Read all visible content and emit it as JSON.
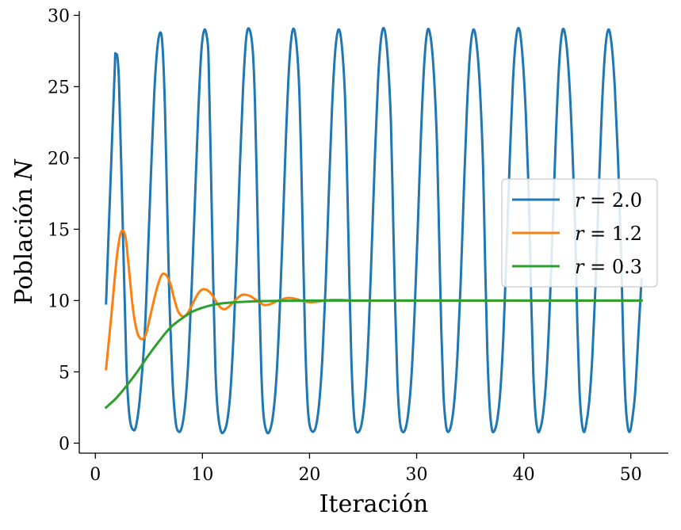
{
  "chart_data": {
    "type": "line",
    "xlabel": "Iteración",
    "ylabel": "Población N",
    "xlim": [
      -1.5,
      53.5
    ],
    "ylim": [
      -0.7,
      30.3
    ],
    "xticks": [
      0,
      10,
      20,
      30,
      40,
      50
    ],
    "yticks": [
      0,
      5,
      10,
      15,
      20,
      25,
      30
    ],
    "xtick_labels": [
      "0",
      "10",
      "20",
      "30",
      "40",
      "50"
    ],
    "ytick_labels": [
      "0",
      "5",
      "10",
      "15",
      "20",
      "25",
      "30"
    ],
    "grid": false,
    "legend_position": "center-right",
    "series": [
      {
        "name": "r = 2.0",
        "legend_var": "r",
        "legend_rest": " = 2.0",
        "color": "#1f77b4",
        "x": [
          1.0,
          1.4,
          1.8,
          1.9,
          2.2,
          2.6,
          2.9,
          3.2,
          3.6,
          3.9,
          4.2,
          4.6,
          4.9,
          5.2,
          5.5,
          5.8,
          6.1,
          6.3,
          6.5,
          6.7,
          6.9,
          7.2,
          7.5,
          7.8,
          8.1,
          8.4,
          8.7,
          9.0,
          9.3,
          9.6,
          9.9,
          10.2,
          10.5,
          10.6,
          10.8,
          11.0,
          11.2,
          11.4,
          11.7,
          12.0,
          12.3,
          12.6,
          12.9,
          13.2,
          13.5,
          13.8,
          14.1,
          14.4,
          14.7,
          14.9,
          15.1,
          15.3,
          15.5,
          15.7,
          16.0,
          16.3,
          16.6,
          16.9,
          17.2,
          17.5,
          17.8,
          18.1,
          18.4,
          18.7,
          19.0,
          19.2,
          19.4,
          19.6,
          19.8,
          20.0,
          20.3,
          20.6,
          20.9,
          21.2,
          21.5,
          21.8,
          22.1,
          22.4,
          22.7,
          23.0,
          23.3,
          23.5,
          23.7,
          23.9,
          24.1,
          24.3,
          24.6,
          24.9,
          25.2,
          25.5,
          25.8,
          26.1,
          26.4,
          26.7,
          27.0,
          27.3,
          27.6,
          27.8,
          28.0,
          28.2,
          28.4,
          28.6,
          28.9,
          29.2,
          29.5,
          29.8,
          30.1,
          30.4,
          30.7,
          31.0,
          31.3,
          31.6,
          31.9,
          32.1,
          32.3,
          32.5,
          32.7,
          32.9,
          33.2,
          33.5,
          33.8,
          34.1,
          34.4,
          34.7,
          35.0,
          35.3,
          35.6,
          35.9,
          36.2,
          36.4,
          36.6,
          36.8,
          37.0,
          37.2,
          37.5,
          37.8,
          38.1,
          38.4,
          38.7,
          39.0,
          39.3,
          39.6,
          39.9,
          40.2,
          40.5,
          40.7,
          40.9,
          41.1,
          41.3,
          41.5,
          41.8,
          42.1,
          42.4,
          42.7,
          43.0,
          43.3,
          43.6,
          43.9,
          44.2,
          44.5,
          44.8,
          45.0,
          45.2,
          45.4,
          45.6,
          45.8,
          46.1,
          46.4,
          46.7,
          47.0,
          47.3,
          47.6,
          47.9,
          48.2,
          48.5,
          48.8,
          49.1,
          49.3,
          49.5,
          49.7,
          49.9,
          50.1,
          50.4,
          50.7,
          51.0
        ],
        "y": [
          9.8,
          18.0,
          26.0,
          27.3,
          25.5,
          14.0,
          5.5,
          1.8,
          0.9,
          1.6,
          3.5,
          7.5,
          13.0,
          19.0,
          24.5,
          27.8,
          28.8,
          27.5,
          23.5,
          17.0,
          10.5,
          4.5,
          1.5,
          0.8,
          1.2,
          2.8,
          6.0,
          11.0,
          17.0,
          23.0,
          27.5,
          29.0,
          28.0,
          26.0,
          19.0,
          11.5,
          5.5,
          2.5,
          0.9,
          0.8,
          1.5,
          3.5,
          7.5,
          13.0,
          19.5,
          25.0,
          28.5,
          29.0,
          27.5,
          24.0,
          17.5,
          10.5,
          5.0,
          2.0,
          0.8,
          0.9,
          2.0,
          4.5,
          9.0,
          15.0,
          21.5,
          26.5,
          28.9,
          28.5,
          25.5,
          20.5,
          13.5,
          7.0,
          3.0,
          1.3,
          0.8,
          1.2,
          2.8,
          6.0,
          11.0,
          17.5,
          23.5,
          27.5,
          29.0,
          28.0,
          24.5,
          19.0,
          12.0,
          6.0,
          2.5,
          1.0,
          0.8,
          1.5,
          3.5,
          7.5,
          13.5,
          20.0,
          25.5,
          28.5,
          29.0,
          27.0,
          22.5,
          16.0,
          9.5,
          4.5,
          1.8,
          0.9,
          0.9,
          2.0,
          4.5,
          9.0,
          15.0,
          21.5,
          26.5,
          28.9,
          28.5,
          26.0,
          21.0,
          14.5,
          8.0,
          3.5,
          1.5,
          0.8,
          1.2,
          2.8,
          6.0,
          11.0,
          17.5,
          23.5,
          27.5,
          29.0,
          28.0,
          25.0,
          19.5,
          12.5,
          6.5,
          2.8,
          1.1,
          0.8,
          1.5,
          3.5,
          7.5,
          13.5,
          20.0,
          25.5,
          28.5,
          29.0,
          27.0,
          23.0,
          16.5,
          10.0,
          4.8,
          2.0,
          0.9,
          0.9,
          2.0,
          4.5,
          9.0,
          15.0,
          21.5,
          26.5,
          28.9,
          28.5,
          26.0,
          21.5,
          15.0,
          8.5,
          3.8,
          1.6,
          0.8,
          1.2,
          2.8,
          6.0,
          11.0,
          17.5,
          23.5,
          27.5,
          29.0,
          28.0,
          25.0,
          20.0,
          13.0,
          7.0,
          3.0,
          1.2,
          0.8,
          1.5,
          3.5,
          7.5,
          11.5
        ]
      },
      {
        "name": "r = 1.2",
        "legend_var": "r",
        "legend_rest": " = 1.2",
        "color": "#ff7f0e",
        "x": [
          1.0,
          1.5,
          2.0,
          2.4,
          2.8,
          3.1,
          3.5,
          3.9,
          4.3,
          4.7,
          5.0,
          5.4,
          5.8,
          6.2,
          6.6,
          7.0,
          7.3,
          7.7,
          8.1,
          8.5,
          8.9,
          9.3,
          9.7,
          10.1,
          10.5,
          10.9,
          11.3,
          11.7,
          12.1,
          12.5,
          12.9,
          13.3,
          13.7,
          14.1,
          14.5,
          14.9,
          15.3,
          15.7,
          16.1,
          16.5,
          16.9,
          17.3,
          17.7,
          18.1,
          18.5,
          18.9,
          19.3,
          19.7,
          20.1,
          20.5,
          21.0,
          21.5,
          22.0,
          22.5,
          23.0,
          23.5,
          24.0,
          25.0,
          26.0,
          27.0,
          28.0,
          30.0,
          35.0,
          40.0,
          45.0,
          51.0
        ],
        "y": [
          5.2,
          9.0,
          13.0,
          14.8,
          14.5,
          12.5,
          9.5,
          7.8,
          7.3,
          7.6,
          8.5,
          9.8,
          11.0,
          11.8,
          11.8,
          11.2,
          10.3,
          9.3,
          8.9,
          9.0,
          9.5,
          10.1,
          10.6,
          10.8,
          10.7,
          10.4,
          9.9,
          9.5,
          9.4,
          9.6,
          9.9,
          10.2,
          10.4,
          10.4,
          10.3,
          10.1,
          9.9,
          9.7,
          9.7,
          9.8,
          9.95,
          10.05,
          10.15,
          10.18,
          10.15,
          10.08,
          9.98,
          9.9,
          9.88,
          9.9,
          9.95,
          10.0,
          10.04,
          10.05,
          10.04,
          10.02,
          10.0,
          9.99,
          9.99,
          10.0,
          10.0,
          10.0,
          10.0,
          10.0,
          10.0,
          10.0
        ]
      },
      {
        "name": "r = 0.3",
        "legend_var": "r",
        "legend_rest": " = 0.3",
        "color": "#2ca02c",
        "x": [
          1.0,
          2.0,
          3.0,
          4.0,
          5.0,
          6.0,
          7.0,
          8.0,
          9.0,
          10.0,
          11.0,
          12.0,
          13.0,
          14.0,
          15.0,
          16.0,
          17.0,
          18.0,
          19.0,
          20.0,
          22.0,
          24.0,
          26.0,
          28.0,
          30.0,
          35.0,
          40.0,
          45.0,
          51.0
        ],
        "y": [
          2.5,
          3.2,
          4.1,
          5.1,
          6.2,
          7.2,
          8.1,
          8.7,
          9.2,
          9.5,
          9.7,
          9.82,
          9.88,
          9.92,
          9.95,
          9.97,
          9.98,
          9.99,
          9.99,
          10.0,
          10.0,
          10.0,
          10.0,
          10.0,
          10.0,
          10.0,
          10.0,
          10.0,
          10.0
        ]
      }
    ]
  }
}
